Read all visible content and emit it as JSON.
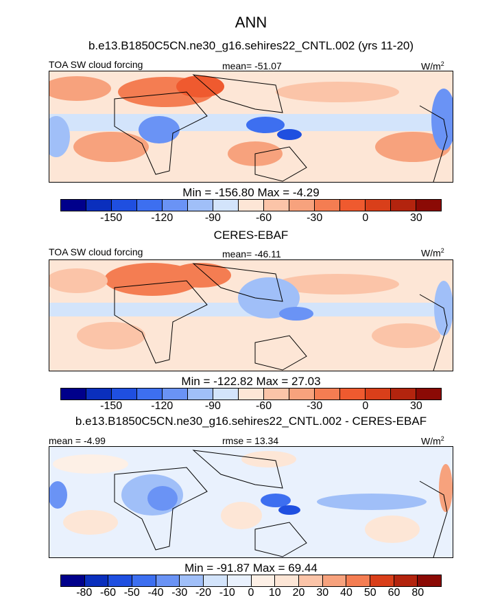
{
  "figure": {
    "title": "ANN",
    "panel_title": "b.e13.B1850C5CN.ne30_g16.sehires22_CNTL.002 (yrs 11-20)",
    "obs_title": "CERES-EBAF",
    "diff_title": "b.e13.B1850C5CN.ne30_g16.sehires22_CNTL.002 - CERES-EBAF"
  },
  "chart_data": [
    {
      "type": "heatmap",
      "name": "model",
      "variable": "TOA SW cloud forcing",
      "units": "W/m",
      "units_sup": "2",
      "mean_text": "mean= -51.07",
      "minmax_text": "Min = -156.80 Max =  -4.29",
      "levels_labels": [
        "-150",
        "-120",
        "-90",
        "-60",
        "-30",
        "0",
        "30"
      ],
      "colors": [
        "#00008b",
        "#0a2fbd",
        "#1f4fe0",
        "#3d6ff0",
        "#6a93f5",
        "#a0bff8",
        "#d3e4fb",
        "#fde6d6",
        "#fbc4a8",
        "#f7a27d",
        "#f47d52",
        "#ef5a2f",
        "#d93f1a",
        "#b3240e",
        "#8b0a05"
      ]
    },
    {
      "type": "heatmap",
      "name": "obs",
      "variable": "TOA SW cloud forcing",
      "units": "W/m",
      "units_sup": "2",
      "mean_text": "mean= -46.11",
      "minmax_text": "Min = -122.82 Max =  27.03",
      "levels_labels": [
        "-150",
        "-120",
        "-90",
        "-60",
        "-30",
        "0",
        "30"
      ],
      "colors": [
        "#00008b",
        "#0a2fbd",
        "#1f4fe0",
        "#3d6ff0",
        "#6a93f5",
        "#a0bff8",
        "#d3e4fb",
        "#fde6d6",
        "#fbc4a8",
        "#f7a27d",
        "#f47d52",
        "#ef5a2f",
        "#d93f1a",
        "#b3240e",
        "#8b0a05"
      ]
    },
    {
      "type": "heatmap",
      "name": "diff",
      "units": "W/m",
      "units_sup": "2",
      "mean_text": "mean =  -4.99",
      "rmse_text": "rmse =  13.34",
      "minmax_text": "Min = -91.87 Max =  69.44",
      "levels_labels": [
        "-80",
        "-60",
        "-50",
        "-40",
        "-30",
        "-20",
        "-10",
        "0",
        "10",
        "20",
        "30",
        "40",
        "50",
        "60",
        "80"
      ],
      "colors": [
        "#00008b",
        "#0a2fbd",
        "#1f4fe0",
        "#3d6ff0",
        "#6a93f5",
        "#a0bff8",
        "#d3e4fb",
        "#e9f1fd",
        "#fdf0e6",
        "#fde6d6",
        "#fbc4a8",
        "#f7a27d",
        "#f47d52",
        "#d93f1a",
        "#b3240e",
        "#8b0a05"
      ]
    }
  ]
}
